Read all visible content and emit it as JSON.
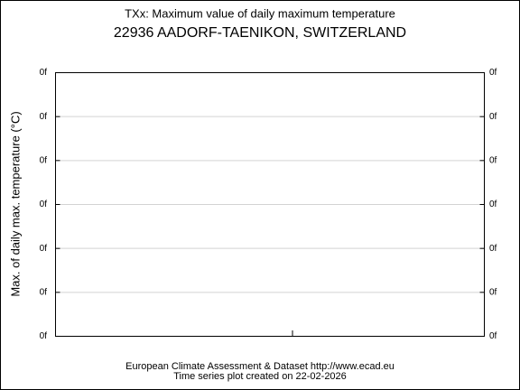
{
  "header": {
    "title": "TXx: Maximum value of daily maximum temperature",
    "station": "22936 AADORF-TAENIKON, SWITZERLAND"
  },
  "plot": {
    "y_axis_label": "Max. of daily max. temperature (°C)",
    "left_tick_labels": [
      "0f",
      "0f",
      "0f",
      "0f",
      "0f",
      "0f",
      "0f"
    ],
    "right_tick_labels": [
      "0f",
      "0f",
      "0f",
      "0f",
      "0f",
      "0f",
      "0f"
    ]
  },
  "footer": {
    "source": "European Climate Assessment & Dataset  http://www.ecad.eu",
    "created": "Time series plot created on 22-02-2026"
  }
}
